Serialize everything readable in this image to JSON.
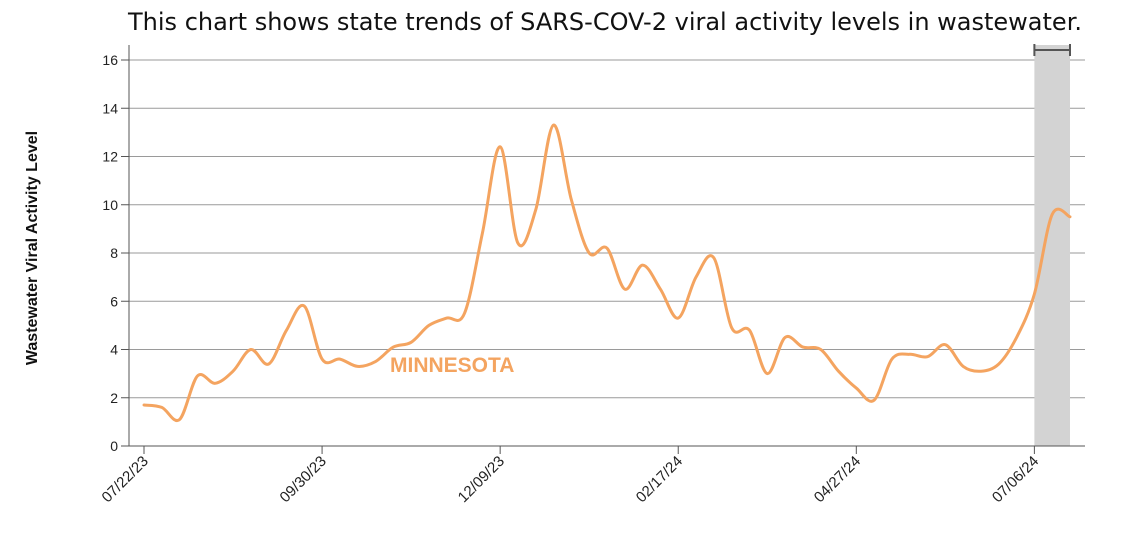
{
  "title": "This chart shows state trends of SARS-COV-2 viral activity levels in wastewater.",
  "chart_data": {
    "type": "line",
    "title": "This chart shows state trends of SARS-COV-2 viral activity levels in wastewater.",
    "xlabel": "",
    "ylabel": "Wastewater Viral Activity Level",
    "ylim": [
      0,
      16
    ],
    "yticks": [
      0,
      2,
      4,
      6,
      8,
      10,
      12,
      14,
      16
    ],
    "grid": true,
    "x_start": "07/22/23",
    "x_end": "07/20/24",
    "xtick_labels": [
      "07/22/23",
      "09/30/23",
      "12/09/23",
      "02/17/24",
      "04/27/24",
      "07/06/24"
    ],
    "highlight_range": [
      "07/06/24",
      "07/20/24"
    ],
    "series": [
      {
        "name": "MINNESOTA",
        "color": "#f4a460",
        "x": [
          "07/22/23",
          "07/29/23",
          "08/05/23",
          "08/12/23",
          "08/19/23",
          "08/26/23",
          "09/02/23",
          "09/09/23",
          "09/16/23",
          "09/23/23",
          "09/30/23",
          "10/07/23",
          "10/14/23",
          "10/21/23",
          "10/28/23",
          "11/04/23",
          "11/11/23",
          "11/18/23",
          "11/25/23",
          "12/02/23",
          "12/09/23",
          "12/16/23",
          "12/23/23",
          "12/30/23",
          "01/06/24",
          "01/13/24",
          "01/20/24",
          "01/27/24",
          "02/03/24",
          "02/10/24",
          "02/17/24",
          "02/24/24",
          "03/02/24",
          "03/09/24",
          "03/16/24",
          "03/23/24",
          "03/30/24",
          "04/06/24",
          "04/13/24",
          "04/20/24",
          "04/27/24",
          "05/04/24",
          "05/11/24",
          "05/18/24",
          "05/25/24",
          "06/01/24",
          "06/08/24",
          "06/15/24",
          "06/22/24",
          "06/29/24",
          "07/06/24",
          "07/13/24",
          "07/20/24"
        ],
        "values": [
          1.7,
          1.6,
          1.1,
          2.9,
          2.6,
          3.1,
          4.0,
          3.4,
          4.8,
          5.8,
          3.6,
          3.6,
          3.3,
          3.5,
          4.1,
          4.3,
          5.0,
          5.3,
          5.5,
          8.8,
          12.4,
          8.4,
          9.8,
          13.3,
          10.2,
          8.0,
          8.2,
          6.5,
          7.5,
          6.5,
          5.3,
          7.0,
          7.8,
          4.9,
          4.8,
          3.0,
          4.5,
          4.1,
          4.0,
          3.1,
          2.4,
          1.9,
          3.6,
          3.8,
          3.7,
          4.2,
          3.3,
          3.1,
          3.4,
          4.5,
          6.3,
          9.6,
          9.5
        ]
      }
    ]
  }
}
